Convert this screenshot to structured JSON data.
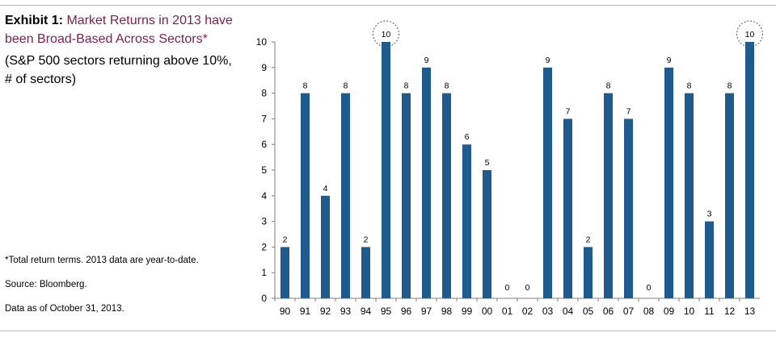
{
  "header": {
    "exhibit_label": "Exhibit 1:",
    "title": "Market Returns in 2013 have been Broad-Based Across Sectors*",
    "subtitle": "(S&P 500 sectors returning above 10%, # of sectors)"
  },
  "notes": [
    "*Total return terms. 2013 data are year-to-date.",
    "Source: Bloomberg.",
    "Data as of October 31, 2013."
  ],
  "colors": {
    "bar": "#1f5a8c",
    "title_accent": "#7a1f4c"
  },
  "chart_data": {
    "type": "bar",
    "title": "Market Returns in 2013 have been Broad-Based Across Sectors*",
    "subtitle": "(S&P 500 sectors returning above 10%, # of sectors)",
    "xlabel": "",
    "ylabel": "",
    "categories": [
      "90",
      "91",
      "92",
      "93",
      "94",
      "95",
      "96",
      "97",
      "98",
      "99",
      "00",
      "01",
      "02",
      "03",
      "04",
      "05",
      "06",
      "07",
      "08",
      "09",
      "10",
      "11",
      "12",
      "13"
    ],
    "values": [
      2,
      8,
      4,
      8,
      2,
      10,
      8,
      9,
      8,
      6,
      5,
      0,
      0,
      9,
      7,
      2,
      8,
      7,
      0,
      9,
      8,
      3,
      8,
      10
    ],
    "ylim": [
      0,
      10
    ],
    "yticks": [
      0,
      1,
      2,
      3,
      4,
      5,
      6,
      7,
      8,
      9,
      10
    ],
    "grid": false,
    "legend": "none",
    "highlighted_categories": [
      "95",
      "13"
    ]
  }
}
